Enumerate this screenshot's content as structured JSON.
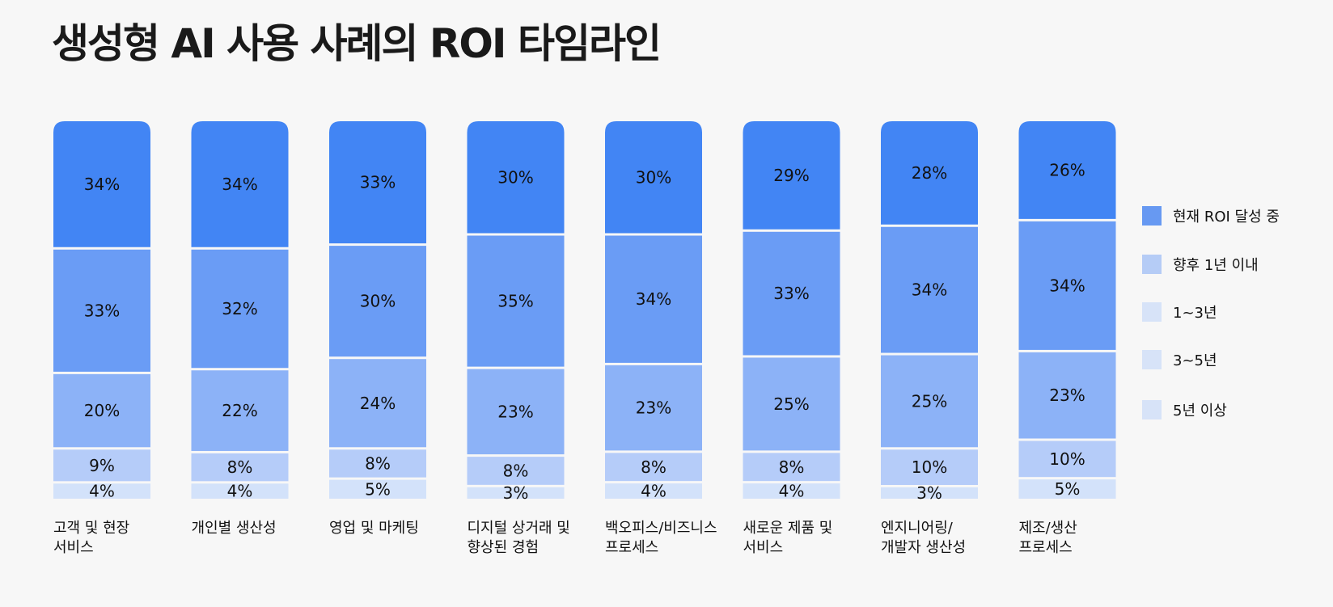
{
  "title": "생성형 AI 사용 사례의 ROI 타임라인",
  "legend": [
    {
      "label": "현재 ROI 달성 중",
      "color": "#6799F2"
    },
    {
      "label": "향후 1년 이내",
      "color": "#B5CCF6"
    },
    {
      "label": "1~3년",
      "color": "#D7E3F8"
    },
    {
      "label": "3~5년",
      "color": "#D7E3F8"
    },
    {
      "label": "5년 이상",
      "color": "#D7E3F8"
    }
  ],
  "chart_data": {
    "type": "bar",
    "stacked": true,
    "title": "생성형 AI 사용 사례의 ROI 타임라인",
    "categories": [
      "고객 및 현장 서비스",
      "개인별 생산성",
      "영업 및 마케팅",
      "디지털 상거래 및 향상된 경험",
      "백오피스/비즈니스 프로세스",
      "새로운 제품 및 서비스",
      "엔지니어링/ 개발자 생산성",
      "제조/생산 프로세스"
    ],
    "category_lines": [
      [
        "고객 및 현장",
        "서비스"
      ],
      [
        "개인별 생산성"
      ],
      [
        "영업 및 마케팅"
      ],
      [
        "디지털 상거래 및",
        "향상된 경험"
      ],
      [
        "백오피스/비즈니스",
        "프로세스"
      ],
      [
        "새로운 제품 및",
        "서비스"
      ],
      [
        "엔지니어링/",
        "개발자 생산성"
      ],
      [
        "제조/생산",
        "프로세스"
      ]
    ],
    "series_top_to_bottom": [
      {
        "values": [
          34,
          34,
          33,
          30,
          30,
          29,
          28,
          26
        ],
        "color": "#4285F4"
      },
      {
        "values": [
          33,
          32,
          30,
          35,
          34,
          33,
          34,
          34
        ],
        "color": "#6A9CF5"
      },
      {
        "values": [
          20,
          22,
          24,
          23,
          23,
          25,
          25,
          23
        ],
        "color": "#8CB2F7"
      },
      {
        "values": [
          9,
          8,
          8,
          8,
          8,
          8,
          10,
          10
        ],
        "color": "#B5CCF9"
      },
      {
        "values": [
          4,
          4,
          5,
          3,
          4,
          4,
          3,
          5
        ],
        "color": "#D3E2FA"
      }
    ],
    "value_suffix": "%",
    "legend_position": "right"
  }
}
